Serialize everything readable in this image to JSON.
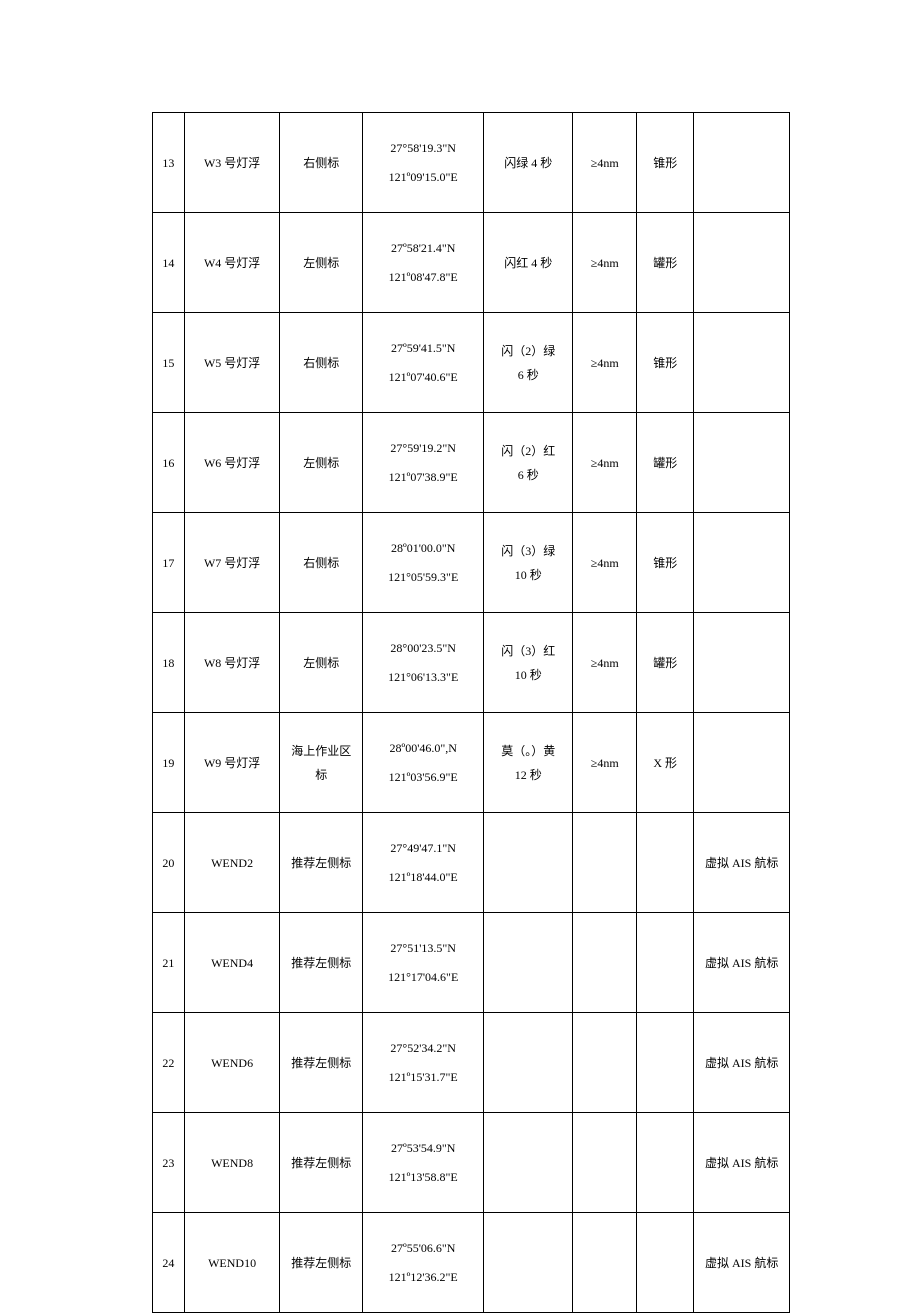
{
  "rows": [
    {
      "idx": "13",
      "name": "W3 号灯浮",
      "type": "右侧标",
      "coord1": "27°58'19.3\"N",
      "coord2": "121º09'15.0\"E",
      "light": "闪绿 4 秒",
      "range": "≥4nm",
      "shape": "锥形",
      "remark": ""
    },
    {
      "idx": "14",
      "name": "W4 号灯浮",
      "type": "左侧标",
      "coord1": "27º58'21.4\"N",
      "coord2": "121º08'47.8\"E",
      "light": "闪红 4 秒",
      "range": "≥4nm",
      "shape": "罐形",
      "remark": ""
    },
    {
      "idx": "15",
      "name": "W5 号灯浮",
      "type": "右侧标",
      "coord1": "27º59'41.5\"N",
      "coord2": "121º07'40.6\"E",
      "light1": "闪（2）绿",
      "light2": "6 秒",
      "range": "≥4nm",
      "shape": "锥形",
      "remark": ""
    },
    {
      "idx": "16",
      "name": "W6 号灯浮",
      "type": "左侧标",
      "coord1": "27°59'19.2\"N",
      "coord2": "121º07'38.9\"E",
      "light1": "闪（2）红",
      "light2": "6 秒",
      "range": "≥4nm",
      "shape": "罐形",
      "remark": ""
    },
    {
      "idx": "17",
      "name": "W7 号灯浮",
      "type": "右侧标",
      "coord1": "28º01'00.0\"N",
      "coord2": "121°05'59.3\"E",
      "light1": "闪（3）绿",
      "light2": "10 秒",
      "range": "≥4nm",
      "shape": "锥形",
      "remark": ""
    },
    {
      "idx": "18",
      "name": "W8 号灯浮",
      "type": "左侧标",
      "coord1": "28°00'23.5\"N",
      "coord2": "121°06'13.3\"E",
      "light1": "闪（3）红",
      "light2": "10 秒",
      "range": "≥4nm",
      "shape": "罐形",
      "remark": ""
    },
    {
      "idx": "19",
      "name": "W9 号灯浮",
      "type1": "海上作业区",
      "type2": "标",
      "coord1": "28º00'46.0\",N",
      "coord2": "121º03'56.9\"E",
      "light1": "莫（。）黄",
      "light2": "12 秒",
      "range": "≥4nm",
      "shape": "X 形",
      "remark": ""
    },
    {
      "idx": "20",
      "name": "WEND2",
      "type": "推荐左侧标",
      "coord1": "27°49'47.1\"N",
      "coord2": "121º18'44.0\"E",
      "light": "",
      "range": "",
      "shape": "",
      "remark": "虚拟 AIS 航标"
    },
    {
      "idx": "21",
      "name": "WEND4",
      "type": "推荐左侧标",
      "coord1": "27°51'13.5\"N",
      "coord2": "121°17'04.6\"E",
      "light": "",
      "range": "",
      "shape": "",
      "remark": "虚拟 AIS 航标"
    },
    {
      "idx": "22",
      "name": "WEND6",
      "type": "推荐左侧标",
      "coord1": "27°52'34.2\"N",
      "coord2": "121º15'31.7\"E",
      "light": "",
      "range": "",
      "shape": "",
      "remark": "虚拟 AIS 航标"
    },
    {
      "idx": "23",
      "name": "WEND8",
      "type": "推荐左侧标",
      "coord1": "27º53'54.9\"N",
      "coord2": "121º13'58.8\"E",
      "light": "",
      "range": "",
      "shape": "",
      "remark": "虚拟 AIS 航标"
    },
    {
      "idx": "24",
      "name": "WEND10",
      "type": "推荐左侧标",
      "coord1": "27º55'06.6\"N",
      "coord2": "121º12'36.2\"E",
      "light": "",
      "range": "",
      "shape": "",
      "remark": "虚拟 AIS 航标"
    }
  ]
}
